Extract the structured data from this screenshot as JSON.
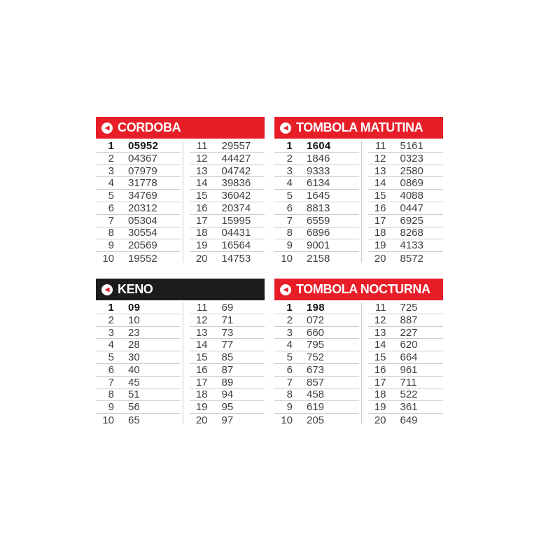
{
  "page": {
    "background": "#ffffff",
    "description": "Lottery results board with four game panels"
  },
  "colors": {
    "red": "#e71d28",
    "black": "#1d1c1a",
    "text": "#3f3f3f",
    "line": "#cccccc",
    "white": "#ffffff"
  },
  "panels": [
    {
      "id": "cordoba",
      "title": "CORDOBA",
      "header_color": "#e71d28",
      "icon": "play-left-icon",
      "rows": [
        {
          "n": "1",
          "v": "05952"
        },
        {
          "n": "2",
          "v": "04367"
        },
        {
          "n": "3",
          "v": "07979"
        },
        {
          "n": "4",
          "v": "31778"
        },
        {
          "n": "5",
          "v": "34769"
        },
        {
          "n": "6",
          "v": "20312"
        },
        {
          "n": "7",
          "v": "05304"
        },
        {
          "n": "8",
          "v": "30554"
        },
        {
          "n": "9",
          "v": "20569"
        },
        {
          "n": "10",
          "v": "19552"
        },
        {
          "n": "11",
          "v": "29557"
        },
        {
          "n": "12",
          "v": "44427"
        },
        {
          "n": "13",
          "v": "04742"
        },
        {
          "n": "14",
          "v": "39836"
        },
        {
          "n": "15",
          "v": "36042"
        },
        {
          "n": "16",
          "v": "20374"
        },
        {
          "n": "17",
          "v": "15995"
        },
        {
          "n": "18",
          "v": "04431"
        },
        {
          "n": "19",
          "v": "16564"
        },
        {
          "n": "20",
          "v": "14753"
        }
      ]
    },
    {
      "id": "tombola-matutina",
      "title": "TOMBOLA MATUTINA",
      "header_color": "#e71d28",
      "icon": "play-left-icon",
      "rows": [
        {
          "n": "1",
          "v": "1604"
        },
        {
          "n": "2",
          "v": "1846"
        },
        {
          "n": "3",
          "v": "9333"
        },
        {
          "n": "4",
          "v": "6134"
        },
        {
          "n": "5",
          "v": "1645"
        },
        {
          "n": "6",
          "v": "8813"
        },
        {
          "n": "7",
          "v": "6559"
        },
        {
          "n": "8",
          "v": "6896"
        },
        {
          "n": "9",
          "v": "9001"
        },
        {
          "n": "10",
          "v": "2158"
        },
        {
          "n": "11",
          "v": "5161"
        },
        {
          "n": "12",
          "v": "0323"
        },
        {
          "n": "13",
          "v": "2580"
        },
        {
          "n": "14",
          "v": "0869"
        },
        {
          "n": "15",
          "v": "4088"
        },
        {
          "n": "16",
          "v": "0447"
        },
        {
          "n": "17",
          "v": "6925"
        },
        {
          "n": "18",
          "v": "8268"
        },
        {
          "n": "19",
          "v": "4133"
        },
        {
          "n": "20",
          "v": "8572"
        }
      ]
    },
    {
      "id": "keno",
      "title": "KENO",
      "header_color": "#1d1c1a",
      "icon": "play-left-icon",
      "rows": [
        {
          "n": "1",
          "v": "09"
        },
        {
          "n": "2",
          "v": "10"
        },
        {
          "n": "3",
          "v": "23"
        },
        {
          "n": "4",
          "v": "28"
        },
        {
          "n": "5",
          "v": "30"
        },
        {
          "n": "6",
          "v": "40"
        },
        {
          "n": "7",
          "v": "45"
        },
        {
          "n": "8",
          "v": "51"
        },
        {
          "n": "9",
          "v": "56"
        },
        {
          "n": "10",
          "v": "65"
        },
        {
          "n": "11",
          "v": "69"
        },
        {
          "n": "12",
          "v": "71"
        },
        {
          "n": "13",
          "v": "73"
        },
        {
          "n": "14",
          "v": "77"
        },
        {
          "n": "15",
          "v": "85"
        },
        {
          "n": "16",
          "v": "87"
        },
        {
          "n": "17",
          "v": "89"
        },
        {
          "n": "18",
          "v": "94"
        },
        {
          "n": "19",
          "v": "95"
        },
        {
          "n": "20",
          "v": "97"
        }
      ]
    },
    {
      "id": "tombola-nocturna",
      "title": "TOMBOLA NOCTURNA",
      "header_color": "#e71d28",
      "icon": "play-left-icon",
      "rows": [
        {
          "n": "1",
          "v": "198"
        },
        {
          "n": "2",
          "v": "072"
        },
        {
          "n": "3",
          "v": "660"
        },
        {
          "n": "4",
          "v": "795"
        },
        {
          "n": "5",
          "v": "752"
        },
        {
          "n": "6",
          "v": "673"
        },
        {
          "n": "7",
          "v": "857"
        },
        {
          "n": "8",
          "v": "458"
        },
        {
          "n": "9",
          "v": "619"
        },
        {
          "n": "10",
          "v": "205"
        },
        {
          "n": "11",
          "v": "725"
        },
        {
          "n": "12",
          "v": "887"
        },
        {
          "n": "13",
          "v": "227"
        },
        {
          "n": "14",
          "v": "620"
        },
        {
          "n": "15",
          "v": "664"
        },
        {
          "n": "16",
          "v": "961"
        },
        {
          "n": "17",
          "v": "711"
        },
        {
          "n": "18",
          "v": "522"
        },
        {
          "n": "19",
          "v": "361"
        },
        {
          "n": "20",
          "v": "649"
        }
      ]
    }
  ]
}
